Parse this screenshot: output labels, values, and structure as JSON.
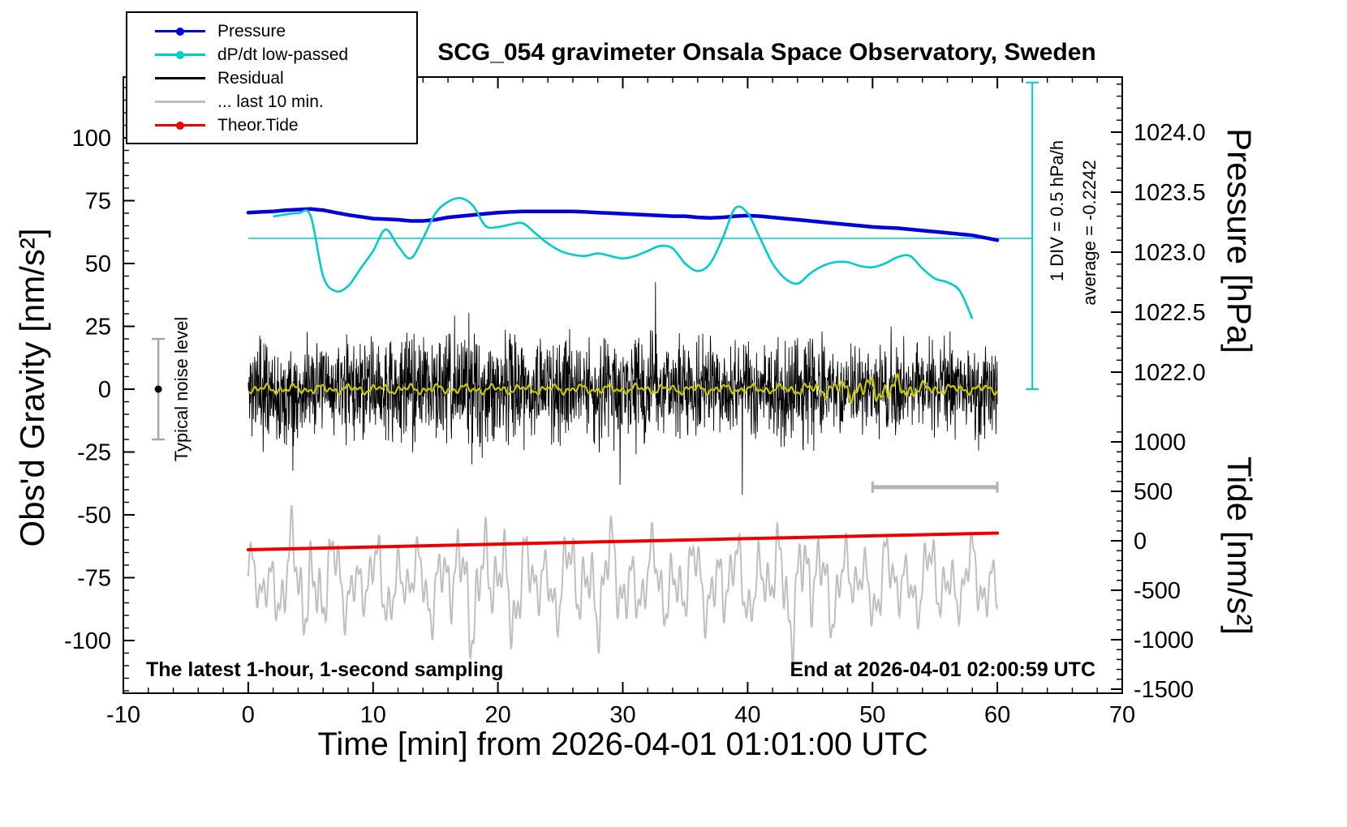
{
  "title": "SCG_054 gravimeter Onsala Space Observatory, Sweden",
  "notes": {
    "sampling": "The latest 1-hour, 1-second sampling",
    "end_time": "End at 2026-04-01 02:00:59 UTC"
  },
  "annotations": {
    "div_scale": "1 DIV = 0.5 hPa/h",
    "average": "average = -0.2242",
    "noise": "Typical noise level"
  },
  "legend": {
    "items": [
      {
        "label": "Pressure",
        "color": "#0000dd",
        "marker": true
      },
      {
        "label": "dP/dt low-passed",
        "color": "#00cccc",
        "marker": true
      },
      {
        "label": "Residual",
        "color": "#000000",
        "marker": false
      },
      {
        "label": "... last 10 min.",
        "color": "#bfbfbf",
        "marker": false
      },
      {
        "label": "Theor.Tide",
        "color": "#ee0000",
        "marker": true
      }
    ]
  },
  "chart_data": {
    "type": "line",
    "x_axis": {
      "label": "Time [min] from 2026-04-01 01:01:00 UTC",
      "min": -10,
      "max": 70,
      "minor_step": 2,
      "major_ticks": [
        -10,
        0,
        10,
        20,
        30,
        40,
        50,
        60,
        70
      ],
      "tick_labels": [
        "-10",
        "0",
        "10",
        "20",
        "30",
        "40",
        "50",
        "60",
        "70"
      ]
    },
    "y_left": {
      "label": "Obs'd Gravity [nm/s²]",
      "ticks": [
        100,
        75,
        50,
        25,
        0,
        -25,
        -50,
        -75,
        -100
      ],
      "tick_labels": [
        "100",
        "75",
        "50",
        "25",
        "0",
        "-25",
        "-50",
        "-75",
        "-100"
      ],
      "minor_step": 5
    },
    "y_right_pressure": {
      "label": "Pressure [hPa]",
      "ticks": [
        1024.0,
        1023.5,
        1023.0,
        1022.5,
        1022.0
      ],
      "tick_labels": [
        "1024.0",
        "1023.5",
        "1023.0",
        "1022.5",
        "1022.0"
      ],
      "minor_step": 0.1
    },
    "y_right_tide": {
      "label": "Tide [nm/s²]",
      "ticks": [
        1000,
        500,
        0,
        -500,
        -1000,
        -1500
      ],
      "tick_labels": [
        "1000",
        "500",
        "0",
        "-500",
        "-1000",
        "-1500"
      ],
      "minor_step": 100
    },
    "series": {
      "pressure": {
        "name": "Pressure",
        "unit": "hPa",
        "color": "#0000dd",
        "x_min": 0,
        "x_max": 60,
        "values": [
          1023.33,
          1023.335,
          1023.34,
          1023.35,
          1023.355,
          1023.36,
          1023.35,
          1023.33,
          1023.31,
          1023.295,
          1023.28,
          1023.275,
          1023.27,
          1023.26,
          1023.26,
          1023.27,
          1023.29,
          1023.3,
          1023.31,
          1023.32,
          1023.33,
          1023.335,
          1023.34,
          1023.34,
          1023.34,
          1023.34,
          1023.34,
          1023.335,
          1023.33,
          1023.325,
          1023.32,
          1023.315,
          1023.31,
          1023.305,
          1023.3,
          1023.3,
          1023.29,
          1023.285,
          1023.29,
          1023.3,
          1023.305,
          1023.3,
          1023.29,
          1023.28,
          1023.27,
          1023.26,
          1023.25,
          1023.24,
          1023.23,
          1023.22,
          1023.21,
          1023.205,
          1023.2,
          1023.19,
          1023.18,
          1023.17,
          1023.16,
          1023.15,
          1023.14,
          1023.12,
          1023.1
        ]
      },
      "dpdt": {
        "name": "dP/dt low-passed",
        "unit": "hPa/h",
        "color": "#00cccc",
        "average": -0.2242,
        "div_value_hpa_per_h": 0.5,
        "x_min": 2,
        "x_max": 58,
        "values": [
          -0.05,
          -0.034,
          -0.024,
          -0.044,
          -0.524,
          -0.644,
          -0.604,
          -0.464,
          -0.324,
          -0.154,
          -0.284,
          -0.384,
          -0.224,
          -0.024,
          0.066,
          0.096,
          0.036,
          -0.124,
          -0.134,
          -0.114,
          -0.104,
          -0.184,
          -0.264,
          -0.324,
          -0.354,
          -0.364,
          -0.344,
          -0.364,
          -0.384,
          -0.364,
          -0.324,
          -0.284,
          -0.304,
          -0.424,
          -0.484,
          -0.424,
          -0.224,
          0.016,
          -0.024,
          -0.224,
          -0.424,
          -0.544,
          -0.584,
          -0.504,
          -0.444,
          -0.414,
          -0.414,
          -0.444,
          -0.454,
          -0.424,
          -0.374,
          -0.364,
          -0.464,
          -0.544,
          -0.574,
          -0.644,
          -0.864
        ]
      },
      "residual": {
        "name": "Residual",
        "unit": "nm/s²",
        "color": "#000000",
        "mean": 0,
        "envelope_step_min": 1,
        "seed": 11,
        "envelope": [
          11,
          13,
          13,
          12,
          11,
          11,
          11,
          11,
          11,
          12,
          12,
          12,
          13,
          13,
          11,
          12,
          13,
          16,
          20,
          16,
          12,
          13,
          13,
          12,
          12,
          12,
          11,
          11,
          12,
          12,
          13,
          13,
          14,
          12,
          11,
          12,
          13,
          11,
          11,
          11,
          12,
          11,
          12,
          12,
          14,
          13,
          11,
          10,
          10,
          10,
          10,
          11,
          11,
          11,
          12,
          12,
          12,
          11,
          11,
          11,
          11
        ]
      },
      "residual_lowpass": {
        "name": "Residual low-passed",
        "unit": "nm/s²",
        "color": "#c8c800",
        "mean": 0,
        "seed": 5,
        "envelope": [
          1.8,
          1.8,
          1.8,
          1.8,
          1.8,
          1.8,
          1.8,
          1.8,
          1.8,
          1.8,
          1.8,
          1.8,
          1.8,
          1.8,
          1.8,
          1.8,
          1.8,
          1.8,
          1.8,
          1.8,
          1.8,
          1.8,
          1.8,
          1.8,
          1.8,
          1.8,
          1.8,
          1.8,
          1.8,
          1.8,
          1.8,
          1.8,
          1.8,
          1.8,
          1.8,
          1.8,
          1.8,
          1.8,
          1.8,
          1.8,
          1.8,
          1.8,
          1.8,
          1.8,
          2.2,
          2.4,
          2.8,
          3.2,
          4,
          4.5,
          5,
          5.2,
          4.6,
          3.6,
          2.6,
          2.2,
          2,
          1.8,
          1.8,
          1.8,
          1.8
        ]
      },
      "last10": {
        "name": "... last 10 min.",
        "unit": "nm/s² (gravity axis)",
        "color": "#bfbfbf",
        "center_gravity": -77,
        "seed": 9,
        "amplitude": [
          14,
          16,
          18,
          22,
          26,
          28,
          24,
          20,
          18,
          16,
          18,
          20,
          18,
          16,
          18,
          20,
          22,
          26,
          28,
          26,
          24,
          26,
          22,
          20,
          18,
          20,
          22,
          24,
          26,
          24,
          22,
          20,
          18,
          20,
          22,
          20,
          18,
          20,
          22,
          20,
          18,
          20,
          22,
          26,
          28,
          26,
          22,
          20,
          18,
          16,
          18,
          20,
          18,
          16,
          18,
          20,
          18,
          16,
          18,
          18,
          16
        ]
      },
      "tide": {
        "name": "Theor.Tide",
        "unit": "nm/s² (tide axis)",
        "color": "#ee0000",
        "x": [
          0,
          10,
          20,
          30,
          40,
          50,
          60
        ],
        "values": [
          -90,
          -62,
          -34,
          -6,
          22,
          50,
          78
        ]
      }
    },
    "markers": {
      "noise_bar": {
        "x": -7.2,
        "gravity_min": -20,
        "gravity_max": 20,
        "color": "#a6a6a6"
      },
      "last10_window": {
        "x_min": 50,
        "x_max": 60,
        "gravity": -39,
        "color": "#b3b3b3"
      },
      "dpdt_scale": {
        "x": 62.8,
        "gravity_min": 0,
        "gravity_max": 122,
        "average_line_gravity": 60,
        "color": "#00cccc"
      }
    }
  }
}
